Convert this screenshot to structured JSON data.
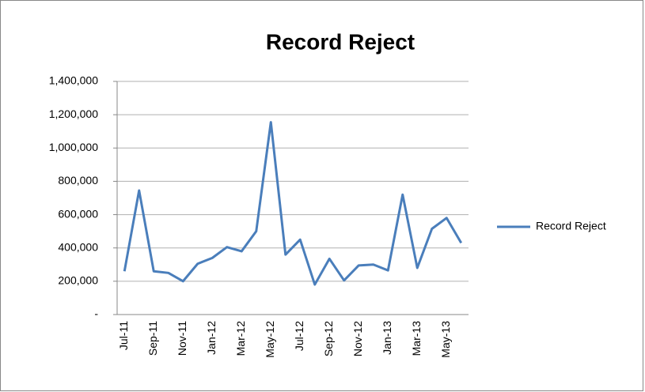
{
  "chart_data": {
    "type": "line",
    "title": "Record Reject",
    "categories": [
      "Jul-11",
      null,
      "Sep-11",
      null,
      "Nov-11",
      null,
      "Jan-12",
      null,
      "Mar-12",
      null,
      "May-12",
      null,
      "Jul-12",
      null,
      "Sep-12",
      null,
      "Nov-12",
      null,
      "Jan-13",
      null,
      "Mar-13",
      null,
      "May-13",
      null
    ],
    "series": [
      {
        "name": "Record Reject",
        "color": "#4a7ebb",
        "values": [
          260000,
          745000,
          260000,
          250000,
          200000,
          305000,
          340000,
          405000,
          380000,
          500000,
          1155000,
          360000,
          450000,
          180000,
          335000,
          205000,
          295000,
          300000,
          265000,
          720000,
          280000,
          515000,
          580000,
          430000
        ]
      }
    ],
    "ylim": [
      0,
      1400000
    ],
    "yticks": [
      {
        "value": 0,
        "label": "-"
      },
      {
        "value": 200000,
        "label": "200,000"
      },
      {
        "value": 400000,
        "label": "400,000"
      },
      {
        "value": 600000,
        "label": "600,000"
      },
      {
        "value": 800000,
        "label": "800,000"
      },
      {
        "value": 1000000,
        "label": "1,000,000"
      },
      {
        "value": 1200000,
        "label": "1,200,000"
      },
      {
        "value": 1400000,
        "label": "1,400,000"
      }
    ],
    "grid": true,
    "legend": "right"
  }
}
